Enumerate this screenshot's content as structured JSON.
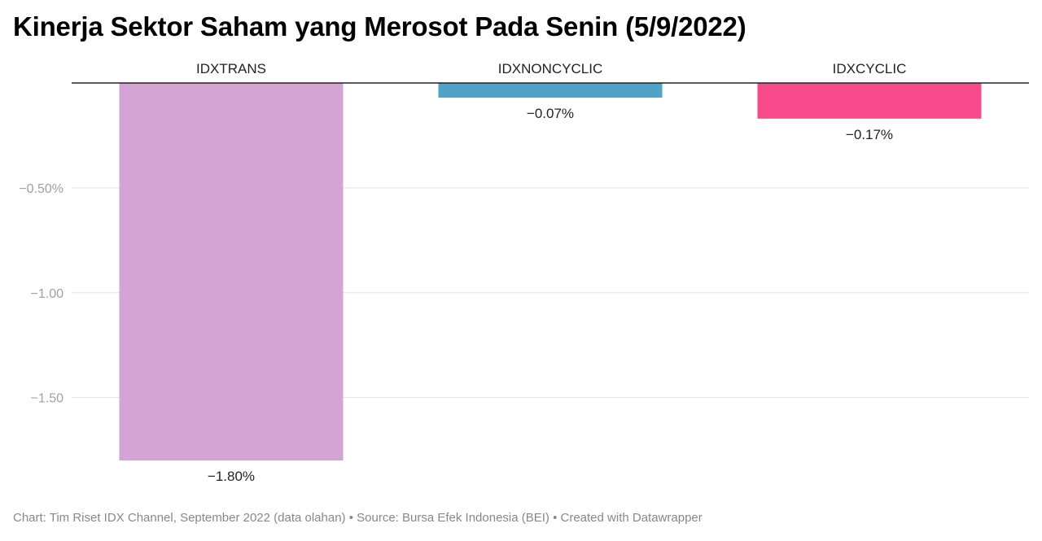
{
  "title": "Kinerja Sektor Saham yang Merosot Pada Senin (5/9/2022)",
  "footer": "Chart: Tim Riset IDX Channel, September 2022 (data olahan) • Source: Bursa Efek Indonesia (BEI) • Created with Datawrapper",
  "chart_data": {
    "type": "bar",
    "categories": [
      "IDXTRANS",
      "IDXNONCYCLIC",
      "IDXCYCLIC"
    ],
    "values": [
      -1.8,
      -0.07,
      -0.17
    ],
    "value_labels": [
      "−1.80%",
      "−0.07%",
      "−0.17%"
    ],
    "colors": [
      "#d4a4d4",
      "#4ea3c7",
      "#f74a8a"
    ],
    "yticks": [
      {
        "value": -0.5,
        "label": "−0.50%"
      },
      {
        "value": -1.0,
        "label": "−1.00"
      },
      {
        "value": -1.5,
        "label": "−1.50"
      }
    ],
    "ylim": [
      -1.8,
      0
    ],
    "grid": true,
    "xlabel": "",
    "ylabel": "",
    "category_label_position": "top"
  }
}
